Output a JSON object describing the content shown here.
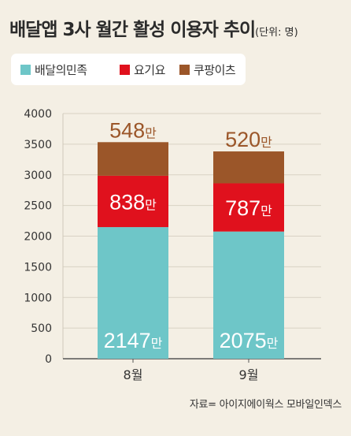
{
  "title": {
    "main": "배달앱 3사 월간 활성 이용자 추이",
    "unit": "(단위: 명)"
  },
  "source": "자료= 아이지에이웍스 모바일인덱스",
  "chart_data": {
    "type": "bar",
    "stacked": true,
    "categories": [
      "8월",
      "9월"
    ],
    "series": [
      {
        "name": "배달의민족",
        "color": "#6ec6c8",
        "values": [
          2147,
          2075
        ],
        "labels": [
          "2147만",
          "2075만"
        ],
        "label_color": "#ffffff"
      },
      {
        "name": "요기요",
        "color": "#e0111d",
        "values": [
          838,
          787
        ],
        "labels": [
          "838만",
          "787만"
        ],
        "label_color": "#ffffff"
      },
      {
        "name": "쿠팡이츠",
        "color": "#9b5629",
        "values": [
          548,
          520
        ],
        "labels": [
          "548만",
          "520만"
        ],
        "label_color": "#9b5629"
      }
    ],
    "ylim": [
      0,
      4000
    ],
    "yticks": [
      "0",
      "500",
      "1000",
      "1500",
      "2000",
      "2500",
      "3000",
      "3500",
      "4000"
    ],
    "grid": true,
    "legend_position": "top-left"
  }
}
